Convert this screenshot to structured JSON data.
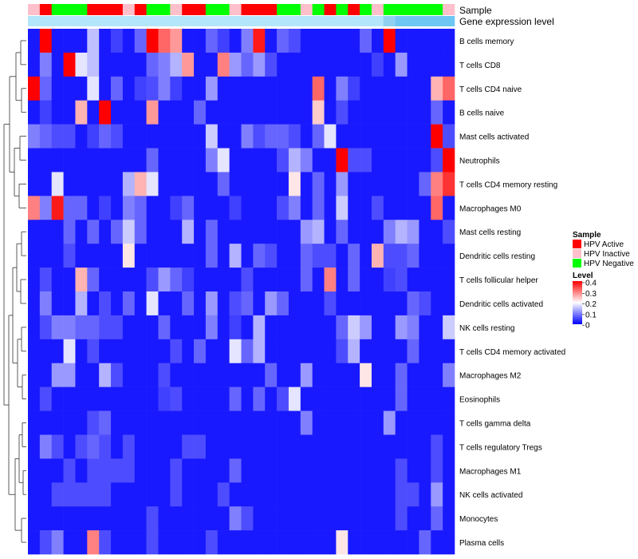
{
  "chart_data": {
    "type": "heatmap",
    "title": "",
    "annotation_titles": [
      "Sample",
      "Gene expression level"
    ],
    "row_labels": [
      "B cells memory",
      "T cells CD8",
      "T cells CD4 naive",
      "B cells naive",
      "Mast cells activated",
      "Neutrophils",
      "T cells CD4 memory resting",
      "Macrophages M0",
      "Mast cells resting",
      "Dendritic cells resting",
      "T cells follicular helper",
      "Dendritic cells activated",
      "NK cells resting",
      "T cells CD4 memory activated",
      "Macrophages M2",
      "Eosinophils",
      "T cells gamma delta",
      "T cells regulatory  Tregs",
      "Macrophages M1",
      "NK cells activated",
      "Monocytes",
      "Plasma cells"
    ],
    "column_count": 36,
    "sample_groups": [
      "HPV Inactive",
      "HPV Active",
      "HPV Negative",
      "HPV Negative",
      "HPV Negative",
      "HPV Active",
      "HPV Active",
      "HPV Active",
      "HPV Inactive",
      "HPV Active",
      "HPV Negative",
      "HPV Negative",
      "HPV Inactive",
      "HPV Active",
      "HPV Active",
      "HPV Negative",
      "HPV Negative",
      "HPV Inactive",
      "HPV Active",
      "HPV Active",
      "HPV Active",
      "HPV Negative",
      "HPV Negative",
      "HPV Inactive",
      "HPV Negative",
      "HPV Active",
      "HPV Negative",
      "HPV Active",
      "HPV Negative",
      "HPV Inactive",
      "HPV Negative",
      "HPV Negative",
      "HPV Negative",
      "HPV Negative",
      "HPV Negative",
      "HPV Inactive"
    ],
    "gene_expression_colors": [
      "#b3e5fb",
      "#b3e5fb",
      "#b3e5fb",
      "#b3e5fb",
      "#b3e5fb",
      "#b3e5fb",
      "#b3e5fb",
      "#b3e5fb",
      "#b3e5fb",
      "#b3e5fb",
      "#b3e5fb",
      "#b3e5fb",
      "#b3e5fb",
      "#b3e5fb",
      "#b3e5fb",
      "#b3e5fb",
      "#b3e5fb",
      "#b3e5fb",
      "#b3e5fb",
      "#b3e5fb",
      "#b3e5fb",
      "#b3e5fb",
      "#b3e5fb",
      "#b3e5fb",
      "#b3e5fb",
      "#b3e5fb",
      "#b3e5fb",
      "#b3e5fb",
      "#b3e5fb",
      "#b3e5fb",
      "#8fd0f0",
      "#6ec6f2",
      "#6ec6f2",
      "#6ec6f2",
      "#6ec6f2",
      "#6ec6f2"
    ],
    "values": [
      [
        0.02,
        0.4,
        0.02,
        0.02,
        0.02,
        0.15,
        0.02,
        0.05,
        0.02,
        0.08,
        0.4,
        0.32,
        0.28,
        0.02,
        0.02,
        0.08,
        0.05,
        0.02,
        0.1,
        0.38,
        0.02,
        0.08,
        0.06,
        0.02,
        0.02,
        0.02,
        0.02,
        0.02,
        0.08,
        0.02,
        0.4,
        0.02,
        0.02,
        0.02,
        0.02,
        0.02
      ],
      [
        0.02,
        0.1,
        0.02,
        0.4,
        0.18,
        0.15,
        0.02,
        0.02,
        0.02,
        0.02,
        0.08,
        0.1,
        0.14,
        0.28,
        0.02,
        0.02,
        0.3,
        0.12,
        0.08,
        0.12,
        0.06,
        0.02,
        0.02,
        0.02,
        0.02,
        0.02,
        0.02,
        0.02,
        0.02,
        0.05,
        0.02,
        0.12,
        0.02,
        0.02,
        0.02,
        0.02
      ],
      [
        0.4,
        0.08,
        0.02,
        0.02,
        0.02,
        0.18,
        0.02,
        0.08,
        0.02,
        0.05,
        0.06,
        0.1,
        0.05,
        0.02,
        0.02,
        0.12,
        0.02,
        0.02,
        0.02,
        0.02,
        0.02,
        0.02,
        0.02,
        0.02,
        0.32,
        0.02,
        0.1,
        0.05,
        0.02,
        0.02,
        0.02,
        0.02,
        0.02,
        0.02,
        0.26,
        0.32
      ],
      [
        0.02,
        0.05,
        0.02,
        0.02,
        0.26,
        0.02,
        0.4,
        0.02,
        0.02,
        0.02,
        0.28,
        0.02,
        0.02,
        0.02,
        0.08,
        0.02,
        0.02,
        0.02,
        0.02,
        0.02,
        0.02,
        0.02,
        0.02,
        0.02,
        0.24,
        0.02,
        0.06,
        0.02,
        0.02,
        0.02,
        0.02,
        0.02,
        0.02,
        0.02,
        0.08,
        0.02
      ],
      [
        0.1,
        0.08,
        0.06,
        0.06,
        0.02,
        0.05,
        0.08,
        0.06,
        0.02,
        0.02,
        0.02,
        0.02,
        0.02,
        0.02,
        0.02,
        0.16,
        0.02,
        0.02,
        0.1,
        0.06,
        0.08,
        0.08,
        0.06,
        0.02,
        0.08,
        0.18,
        0.02,
        0.02,
        0.02,
        0.02,
        0.02,
        0.02,
        0.02,
        0.02,
        0.4,
        0.06
      ],
      [
        0.02,
        0.02,
        0.02,
        0.02,
        0.02,
        0.02,
        0.02,
        0.02,
        0.02,
        0.02,
        0.08,
        0.02,
        0.02,
        0.02,
        0.02,
        0.1,
        0.18,
        0.02,
        0.02,
        0.02,
        0.02,
        0.06,
        0.14,
        0.1,
        0.02,
        0.02,
        0.4,
        0.06,
        0.06,
        0.02,
        0.02,
        0.02,
        0.02,
        0.02,
        0.06,
        0.4
      ],
      [
        0.02,
        0.02,
        0.18,
        0.02,
        0.02,
        0.02,
        0.02,
        0.02,
        0.14,
        0.26,
        0.18,
        0.02,
        0.02,
        0.02,
        0.02,
        0.02,
        0.08,
        0.02,
        0.02,
        0.02,
        0.02,
        0.02,
        0.22,
        0.02,
        0.08,
        0.02,
        0.12,
        0.02,
        0.02,
        0.02,
        0.02,
        0.02,
        0.02,
        0.08,
        0.3,
        0.36
      ],
      [
        0.3,
        0.1,
        0.38,
        0.08,
        0.08,
        0.02,
        0.05,
        0.02,
        0.1,
        0.08,
        0.02,
        0.02,
        0.05,
        0.08,
        0.02,
        0.02,
        0.02,
        0.05,
        0.02,
        0.02,
        0.02,
        0.06,
        0.1,
        0.02,
        0.08,
        0.02,
        0.16,
        0.02,
        0.02,
        0.06,
        0.02,
        0.02,
        0.02,
        0.02,
        0.32,
        0.02
      ],
      [
        0.02,
        0.02,
        0.02,
        0.08,
        0.02,
        0.08,
        0.02,
        0.08,
        0.16,
        0.08,
        0.02,
        0.02,
        0.02,
        0.14,
        0.02,
        0.08,
        0.02,
        0.02,
        0.02,
        0.02,
        0.02,
        0.02,
        0.02,
        0.12,
        0.14,
        0.02,
        0.08,
        0.02,
        0.02,
        0.02,
        0.1,
        0.14,
        0.12,
        0.02,
        0.02,
        0.06
      ],
      [
        0.02,
        0.02,
        0.02,
        0.06,
        0.02,
        0.02,
        0.02,
        0.02,
        0.22,
        0.02,
        0.02,
        0.02,
        0.02,
        0.02,
        0.02,
        0.08,
        0.02,
        0.14,
        0.02,
        0.08,
        0.06,
        0.02,
        0.02,
        0.08,
        0.06,
        0.06,
        0.02,
        0.08,
        0.02,
        0.26,
        0.06,
        0.06,
        0.08,
        0.02,
        0.02,
        0.02
      ],
      [
        0.02,
        0.06,
        0.02,
        0.02,
        0.26,
        0.08,
        0.02,
        0.02,
        0.02,
        0.02,
        0.06,
        0.12,
        0.08,
        0.05,
        0.02,
        0.02,
        0.02,
        0.02,
        0.06,
        0.02,
        0.02,
        0.02,
        0.02,
        0.08,
        0.02,
        0.3,
        0.02,
        0.08,
        0.02,
        0.02,
        0.05,
        0.06,
        0.02,
        0.02,
        0.02,
        0.02
      ],
      [
        0.02,
        0.1,
        0.02,
        0.02,
        0.14,
        0.02,
        0.06,
        0.02,
        0.08,
        0.02,
        0.18,
        0.02,
        0.02,
        0.08,
        0.02,
        0.12,
        0.02,
        0.06,
        0.08,
        0.02,
        0.12,
        0.08,
        0.02,
        0.02,
        0.02,
        0.06,
        0.02,
        0.02,
        0.02,
        0.02,
        0.02,
        0.02,
        0.08,
        0.06,
        0.02,
        0.02
      ],
      [
        0.02,
        0.06,
        0.1,
        0.1,
        0.08,
        0.08,
        0.06,
        0.06,
        0.02,
        0.02,
        0.02,
        0.08,
        0.02,
        0.02,
        0.02,
        0.1,
        0.02,
        0.05,
        0.02,
        0.14,
        0.02,
        0.02,
        0.02,
        0.02,
        0.02,
        0.02,
        0.08,
        0.16,
        0.12,
        0.02,
        0.02,
        0.12,
        0.1,
        0.02,
        0.02,
        0.16
      ],
      [
        0.02,
        0.02,
        0.02,
        0.18,
        0.02,
        0.06,
        0.02,
        0.02,
        0.02,
        0.02,
        0.02,
        0.02,
        0.06,
        0.02,
        0.08,
        0.02,
        0.02,
        0.18,
        0.08,
        0.14,
        0.02,
        0.02,
        0.02,
        0.02,
        0.02,
        0.02,
        0.06,
        0.14,
        0.02,
        0.02,
        0.02,
        0.02,
        0.08,
        0.02,
        0.02,
        0.02
      ],
      [
        0.02,
        0.02,
        0.12,
        0.12,
        0.02,
        0.02,
        0.14,
        0.06,
        0.02,
        0.02,
        0.02,
        0.06,
        0.02,
        0.02,
        0.02,
        0.02,
        0.02,
        0.02,
        0.02,
        0.02,
        0.08,
        0.02,
        0.02,
        0.12,
        0.02,
        0.02,
        0.02,
        0.02,
        0.22,
        0.02,
        0.02,
        0.08,
        0.02,
        0.02,
        0.02,
        0.1
      ],
      [
        0.02,
        0.06,
        0.02,
        0.02,
        0.02,
        0.02,
        0.02,
        0.02,
        0.02,
        0.02,
        0.02,
        0.05,
        0.06,
        0.02,
        0.02,
        0.02,
        0.02,
        0.08,
        0.02,
        0.08,
        0.02,
        0.06,
        0.18,
        0.02,
        0.02,
        0.02,
        0.02,
        0.02,
        0.02,
        0.02,
        0.02,
        0.08,
        0.02,
        0.02,
        0.02,
        0.02
      ],
      [
        0.02,
        0.02,
        0.02,
        0.02,
        0.02,
        0.06,
        0.08,
        0.02,
        0.02,
        0.02,
        0.02,
        0.02,
        0.02,
        0.02,
        0.02,
        0.02,
        0.02,
        0.02,
        0.02,
        0.02,
        0.02,
        0.02,
        0.02,
        0.1,
        0.02,
        0.02,
        0.02,
        0.02,
        0.02,
        0.02,
        0.12,
        0.02,
        0.02,
        0.02,
        0.02,
        0.02
      ],
      [
        0.02,
        0.1,
        0.06,
        0.02,
        0.06,
        0.08,
        0.06,
        0.02,
        0.06,
        0.02,
        0.02,
        0.02,
        0.02,
        0.06,
        0.06,
        0.02,
        0.02,
        0.02,
        0.02,
        0.02,
        0.02,
        0.02,
        0.02,
        0.02,
        0.02,
        0.02,
        0.02,
        0.02,
        0.02,
        0.02,
        0.02,
        0.02,
        0.02,
        0.02,
        0.06,
        0.02
      ],
      [
        0.02,
        0.02,
        0.02,
        0.06,
        0.02,
        0.06,
        0.06,
        0.06,
        0.06,
        0.02,
        0.02,
        0.02,
        0.06,
        0.02,
        0.02,
        0.02,
        0.02,
        0.08,
        0.02,
        0.02,
        0.02,
        0.02,
        0.02,
        0.02,
        0.02,
        0.02,
        0.02,
        0.02,
        0.02,
        0.02,
        0.02,
        0.06,
        0.02,
        0.02,
        0.06,
        0.02
      ],
      [
        0.02,
        0.02,
        0.06,
        0.06,
        0.06,
        0.06,
        0.06,
        0.02,
        0.02,
        0.02,
        0.02,
        0.02,
        0.06,
        0.02,
        0.02,
        0.02,
        0.06,
        0.02,
        0.02,
        0.02,
        0.02,
        0.02,
        0.02,
        0.02,
        0.02,
        0.02,
        0.02,
        0.02,
        0.02,
        0.02,
        0.02,
        0.06,
        0.06,
        0.02,
        0.12,
        0.02
      ],
      [
        0.02,
        0.02,
        0.02,
        0.02,
        0.02,
        0.02,
        0.02,
        0.02,
        0.02,
        0.02,
        0.06,
        0.02,
        0.02,
        0.02,
        0.02,
        0.02,
        0.02,
        0.1,
        0.06,
        0.02,
        0.02,
        0.02,
        0.02,
        0.02,
        0.02,
        0.02,
        0.02,
        0.02,
        0.02,
        0.02,
        0.02,
        0.06,
        0.02,
        0.02,
        0.08,
        0.02
      ],
      [
        0.02,
        0.06,
        0.1,
        0.02,
        0.02,
        0.3,
        0.06,
        0.02,
        0.02,
        0.02,
        0.06,
        0.02,
        0.02,
        0.02,
        0.02,
        0.06,
        0.02,
        0.02,
        0.02,
        0.02,
        0.02,
        0.02,
        0.02,
        0.02,
        0.02,
        0.02,
        0.22,
        0.02,
        0.02,
        0.02,
        0.02,
        0.02,
        0.02,
        0.08,
        0.02,
        0.02
      ]
    ],
    "color_scale": {
      "min": 0,
      "max": 0.4,
      "low": "#0000ff",
      "mid": "#ffffff",
      "high": "#ff0000",
      "midpoint": 0.2
    },
    "legend_sample_title": "Sample",
    "legend_sample_items": [
      {
        "label": "HPV Active",
        "color": "#ff0000"
      },
      {
        "label": "HPV Inactive",
        "color": "#ffc0cb"
      },
      {
        "label": "HPV Negative",
        "color": "#00ff00"
      }
    ],
    "legend_level_title": "Level",
    "legend_level_ticks": [
      "0.4",
      "0.3",
      "0.2",
      "0.1",
      "0"
    ],
    "dendrogram": "left"
  }
}
